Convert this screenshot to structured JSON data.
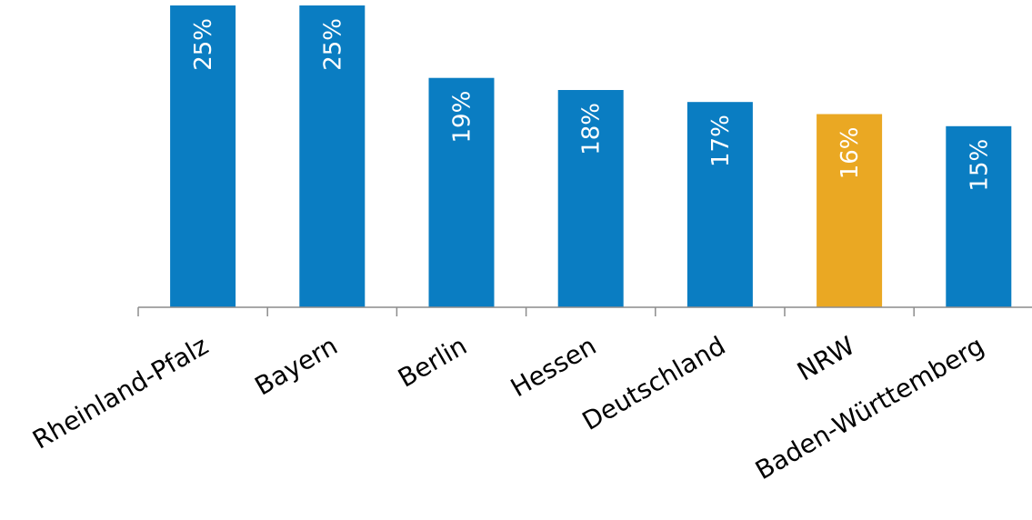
{
  "chart_data": {
    "type": "bar",
    "categories": [
      "Rheinland-Pfalz",
      "Bayern",
      "Berlin",
      "Hessen",
      "Deutschland",
      "NRW",
      "Baden-Württemberg"
    ],
    "values": [
      25,
      25,
      19,
      18,
      17,
      16,
      15
    ],
    "value_labels": [
      "25%",
      "25%",
      "19%",
      "18%",
      "17%",
      "16%",
      "15%"
    ],
    "unit": "%",
    "highlight_category": "NRW",
    "colors": {
      "default": "#0a7dc2",
      "highlight": "#eaa823",
      "axis": "#8c8c8c",
      "label_inside": "#ffffff"
    },
    "ylim": [
      0,
      25
    ],
    "grid": false,
    "legend": "none"
  }
}
